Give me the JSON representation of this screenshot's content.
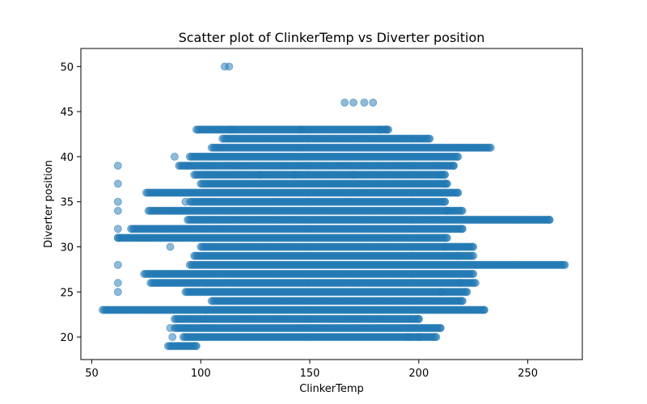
{
  "chart_data": {
    "type": "scatter",
    "title": "Scatter plot of ClinkerTemp vs Diverter position",
    "xlabel": "ClinkerTemp",
    "ylabel": "Diverter position",
    "xlim": [
      45,
      275
    ],
    "ylim": [
      17.5,
      52
    ],
    "x_ticks": [
      50,
      100,
      150,
      200,
      250
    ],
    "y_ticks": [
      20,
      25,
      30,
      35,
      40,
      45,
      50
    ],
    "grid": false,
    "marker_color": "#1f77b4",
    "marker_alpha": 0.5,
    "series": [
      {
        "bands": [
          {
            "y": 19,
            "x": [
              85,
              98
            ]
          },
          {
            "y": 20,
            "x": [
              92,
              208
            ]
          },
          {
            "y": 21,
            "x": [
              88,
              210
            ]
          },
          {
            "y": 22,
            "x": [
              88,
              200
            ]
          },
          {
            "y": 23,
            "x": [
              55,
              230
            ]
          },
          {
            "y": 24,
            "x": [
              105,
              220
            ]
          },
          {
            "y": 25,
            "x": [
              93,
              222
            ]
          },
          {
            "y": 26,
            "x": [
              77,
              226
            ]
          },
          {
            "y": 27,
            "x": [
              74,
              225
            ]
          },
          {
            "y": 28,
            "x": [
              95,
              267
            ]
          },
          {
            "y": 29,
            "x": [
              97,
              225
            ]
          },
          {
            "y": 30,
            "x": [
              100,
              225
            ]
          },
          {
            "y": 31,
            "x": [
              62,
              213
            ]
          },
          {
            "y": 32,
            "x": [
              68,
              220
            ]
          },
          {
            "y": 33,
            "x": [
              94,
              260
            ]
          },
          {
            "y": 34,
            "x": [
              76,
              220
            ]
          },
          {
            "y": 35,
            "x": [
              95,
              212
            ]
          },
          {
            "y": 36,
            "x": [
              75,
              218
            ]
          },
          {
            "y": 37,
            "x": [
              100,
              213
            ]
          },
          {
            "y": 38,
            "x": [
              97,
              212
            ]
          },
          {
            "y": 39,
            "x": [
              90,
              216
            ]
          },
          {
            "y": 40,
            "x": [
              95,
              218
            ]
          },
          {
            "y": 41,
            "x": [
              105,
              233
            ]
          },
          {
            "y": 42,
            "x": [
              110,
              205
            ]
          },
          {
            "y": 43,
            "x": [
              98,
              186
            ]
          }
        ],
        "points": [
          {
            "x": 111,
            "y": 50
          },
          {
            "x": 113,
            "y": 50
          },
          {
            "x": 166,
            "y": 46
          },
          {
            "x": 170,
            "y": 46
          },
          {
            "x": 175,
            "y": 46
          },
          {
            "x": 179,
            "y": 46
          },
          {
            "x": 114,
            "y": 43
          },
          {
            "x": 146,
            "y": 43
          },
          {
            "x": 182,
            "y": 43
          },
          {
            "x": 185,
            "y": 43
          },
          {
            "x": 62,
            "y": 39
          },
          {
            "x": 62,
            "y": 37
          },
          {
            "x": 62,
            "y": 35
          },
          {
            "x": 62,
            "y": 34
          },
          {
            "x": 62,
            "y": 32
          },
          {
            "x": 62,
            "y": 31
          },
          {
            "x": 62,
            "y": 28
          },
          {
            "x": 62,
            "y": 26
          },
          {
            "x": 62,
            "y": 25
          },
          {
            "x": 210,
            "y": 38
          },
          {
            "x": 212,
            "y": 37
          },
          {
            "x": 213,
            "y": 34
          },
          {
            "x": 212,
            "y": 30
          },
          {
            "x": 218,
            "y": 29
          },
          {
            "x": 210,
            "y": 25
          },
          {
            "x": 219,
            "y": 26
          },
          {
            "x": 86,
            "y": 30
          },
          {
            "x": 93,
            "y": 35
          },
          {
            "x": 88,
            "y": 40
          },
          {
            "x": 86,
            "y": 21
          },
          {
            "x": 87,
            "y": 20
          },
          {
            "x": 127,
            "y": 38
          },
          {
            "x": 143,
            "y": 38
          },
          {
            "x": 170,
            "y": 38
          },
          {
            "x": 195,
            "y": 20
          },
          {
            "x": 200,
            "y": 20
          }
        ]
      }
    ]
  }
}
